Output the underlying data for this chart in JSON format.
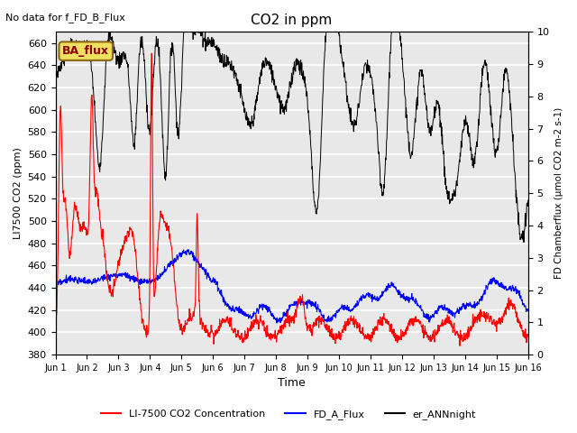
{
  "title": "CO2 in ppm",
  "top_left_text": "No data for f_FD_B_Flux",
  "annotation_box_text": "BA_flux",
  "xlabel": "Time",
  "ylabel_left": "LI7500 CO2 (ppm)",
  "ylabel_right": "FD Chamberflux (μmol CO2 m-2 s-1)",
  "ylim_left": [
    380,
    670
  ],
  "ylim_right": [
    0.0,
    10.0
  ],
  "xlim": [
    0,
    15
  ],
  "xtick_labels": [
    "Jun 1",
    "Jun 2",
    "Jun 3",
    "Jun 4",
    "Jun 5",
    "Jun 6",
    "Jun 7",
    "Jun 8",
    "Jun 9",
    "Jun 10",
    "Jun 11",
    "Jun 12",
    "Jun 13",
    "Jun 14",
    "Jun 15",
    "Jun 16"
  ],
  "yticks_left": [
    380,
    400,
    420,
    440,
    460,
    480,
    500,
    520,
    540,
    560,
    580,
    600,
    620,
    640,
    660
  ],
  "yticks_right": [
    0.0,
    1.0,
    2.0,
    3.0,
    4.0,
    5.0,
    6.0,
    7.0,
    8.0,
    9.0,
    10.0
  ],
  "legend_entries": [
    "LI-7500 CO2 Concentration",
    "FD_A_Flux",
    "er_ANNnight"
  ],
  "legend_colors": [
    "red",
    "blue",
    "black"
  ],
  "background_color": "#e8e8e8",
  "grid_color": "white",
  "annotation_box_color": "#f0e060",
  "annotation_box_text_color": "#8b0000"
}
